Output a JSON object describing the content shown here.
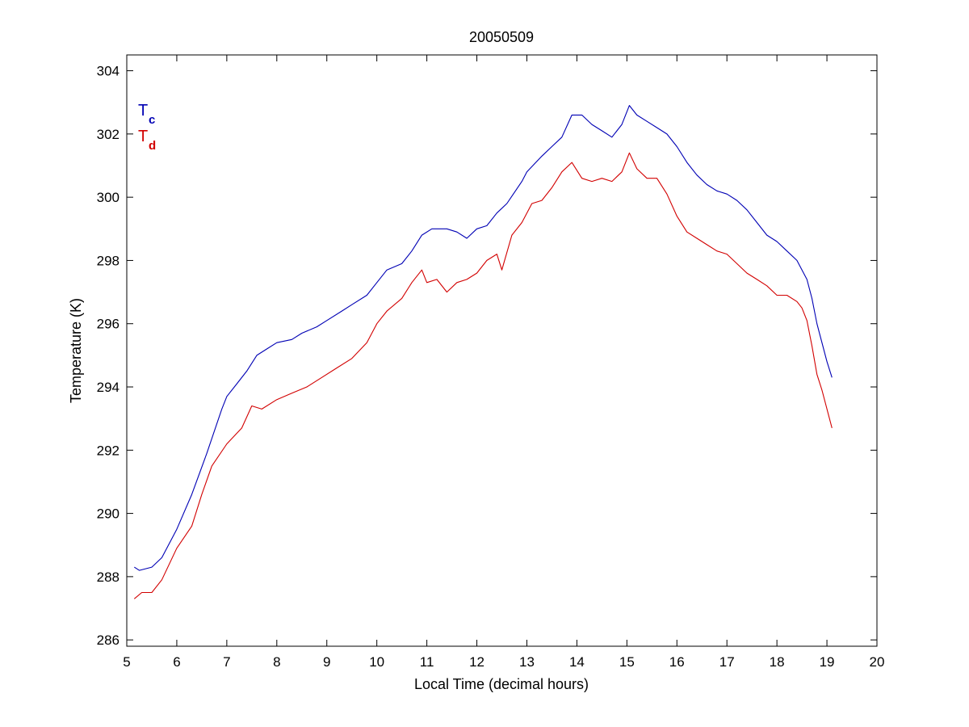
{
  "chart_data": {
    "type": "line",
    "title": "20050509",
    "xlabel": "Local Time (decimal hours)",
    "ylabel": "Temperature (K)",
    "xlim": [
      5,
      20
    ],
    "ylim": [
      285.8,
      304.5
    ],
    "xticks": [
      5,
      6,
      7,
      8,
      9,
      10,
      11,
      12,
      13,
      14,
      15,
      16,
      17,
      18,
      19,
      20
    ],
    "yticks": [
      286,
      288,
      290,
      292,
      294,
      296,
      298,
      300,
      302,
      304
    ],
    "grid": false,
    "legend_placement": "top-left",
    "series": [
      {
        "name": "T",
        "subscript": "c",
        "color": "#0000b4",
        "points": [
          [
            5.15,
            288.3
          ],
          [
            5.25,
            288.2
          ],
          [
            5.5,
            288.3
          ],
          [
            5.7,
            288.6
          ],
          [
            6.0,
            289.5
          ],
          [
            6.3,
            290.6
          ],
          [
            6.6,
            291.9
          ],
          [
            6.9,
            293.3
          ],
          [
            7.0,
            293.7
          ],
          [
            7.2,
            294.1
          ],
          [
            7.4,
            294.5
          ],
          [
            7.6,
            295.0
          ],
          [
            7.8,
            295.2
          ],
          [
            8.0,
            295.4
          ],
          [
            8.3,
            295.5
          ],
          [
            8.5,
            295.7
          ],
          [
            8.8,
            295.9
          ],
          [
            9.0,
            296.1
          ],
          [
            9.3,
            296.4
          ],
          [
            9.5,
            296.6
          ],
          [
            9.8,
            296.9
          ],
          [
            10.0,
            297.3
          ],
          [
            10.2,
            297.7
          ],
          [
            10.5,
            297.9
          ],
          [
            10.7,
            298.3
          ],
          [
            10.9,
            298.8
          ],
          [
            11.1,
            299.0
          ],
          [
            11.4,
            299.0
          ],
          [
            11.6,
            298.9
          ],
          [
            11.8,
            298.7
          ],
          [
            12.0,
            299.0
          ],
          [
            12.2,
            299.1
          ],
          [
            12.4,
            299.5
          ],
          [
            12.6,
            299.8
          ],
          [
            12.9,
            300.5
          ],
          [
            13.0,
            300.8
          ],
          [
            13.3,
            301.3
          ],
          [
            13.5,
            301.6
          ],
          [
            13.7,
            301.9
          ],
          [
            13.9,
            302.6
          ],
          [
            14.1,
            302.6
          ],
          [
            14.3,
            302.3
          ],
          [
            14.5,
            302.1
          ],
          [
            14.7,
            301.9
          ],
          [
            14.9,
            302.3
          ],
          [
            15.05,
            302.9
          ],
          [
            15.2,
            302.6
          ],
          [
            15.4,
            302.4
          ],
          [
            15.6,
            302.2
          ],
          [
            15.8,
            302.0
          ],
          [
            16.0,
            301.6
          ],
          [
            16.2,
            301.1
          ],
          [
            16.4,
            300.7
          ],
          [
            16.6,
            300.4
          ],
          [
            16.8,
            300.2
          ],
          [
            17.0,
            300.1
          ],
          [
            17.2,
            299.9
          ],
          [
            17.4,
            299.6
          ],
          [
            17.6,
            299.2
          ],
          [
            17.8,
            298.8
          ],
          [
            18.0,
            298.6
          ],
          [
            18.2,
            298.3
          ],
          [
            18.4,
            298.0
          ],
          [
            18.6,
            297.4
          ],
          [
            18.7,
            296.8
          ],
          [
            18.8,
            296.0
          ],
          [
            18.9,
            295.4
          ],
          [
            19.0,
            294.8
          ],
          [
            19.1,
            294.3
          ]
        ]
      },
      {
        "name": "T",
        "subscript": "d",
        "color": "#d20000",
        "points": [
          [
            5.15,
            287.3
          ],
          [
            5.3,
            287.5
          ],
          [
            5.5,
            287.5
          ],
          [
            5.7,
            287.9
          ],
          [
            6.0,
            288.9
          ],
          [
            6.3,
            289.6
          ],
          [
            6.5,
            290.6
          ],
          [
            6.7,
            291.5
          ],
          [
            7.0,
            292.2
          ],
          [
            7.3,
            292.7
          ],
          [
            7.5,
            293.4
          ],
          [
            7.7,
            293.3
          ],
          [
            8.0,
            293.6
          ],
          [
            8.3,
            293.8
          ],
          [
            8.6,
            294.0
          ],
          [
            8.9,
            294.3
          ],
          [
            9.2,
            294.6
          ],
          [
            9.5,
            294.9
          ],
          [
            9.8,
            295.4
          ],
          [
            10.0,
            296.0
          ],
          [
            10.2,
            296.4
          ],
          [
            10.5,
            296.8
          ],
          [
            10.7,
            297.3
          ],
          [
            10.9,
            297.7
          ],
          [
            11.0,
            297.3
          ],
          [
            11.2,
            297.4
          ],
          [
            11.4,
            297.0
          ],
          [
            11.6,
            297.3
          ],
          [
            11.8,
            297.4
          ],
          [
            12.0,
            297.6
          ],
          [
            12.2,
            298.0
          ],
          [
            12.4,
            298.2
          ],
          [
            12.5,
            297.7
          ],
          [
            12.7,
            298.8
          ],
          [
            12.9,
            299.2
          ],
          [
            13.1,
            299.8
          ],
          [
            13.3,
            299.9
          ],
          [
            13.5,
            300.3
          ],
          [
            13.7,
            300.8
          ],
          [
            13.9,
            301.1
          ],
          [
            14.1,
            300.6
          ],
          [
            14.3,
            300.5
          ],
          [
            14.5,
            300.6
          ],
          [
            14.7,
            300.5
          ],
          [
            14.9,
            300.8
          ],
          [
            15.05,
            301.4
          ],
          [
            15.2,
            300.9
          ],
          [
            15.4,
            300.6
          ],
          [
            15.6,
            300.6
          ],
          [
            15.8,
            300.1
          ],
          [
            16.0,
            299.4
          ],
          [
            16.2,
            298.9
          ],
          [
            16.4,
            298.7
          ],
          [
            16.6,
            298.5
          ],
          [
            16.8,
            298.3
          ],
          [
            17.0,
            298.2
          ],
          [
            17.2,
            297.9
          ],
          [
            17.4,
            297.6
          ],
          [
            17.6,
            297.4
          ],
          [
            17.8,
            297.2
          ],
          [
            18.0,
            296.9
          ],
          [
            18.2,
            296.9
          ],
          [
            18.4,
            296.7
          ],
          [
            18.5,
            296.5
          ],
          [
            18.6,
            296.1
          ],
          [
            18.7,
            295.3
          ],
          [
            18.8,
            294.4
          ],
          [
            18.9,
            293.9
          ],
          [
            19.0,
            293.3
          ],
          [
            19.1,
            292.7
          ]
        ]
      }
    ]
  }
}
